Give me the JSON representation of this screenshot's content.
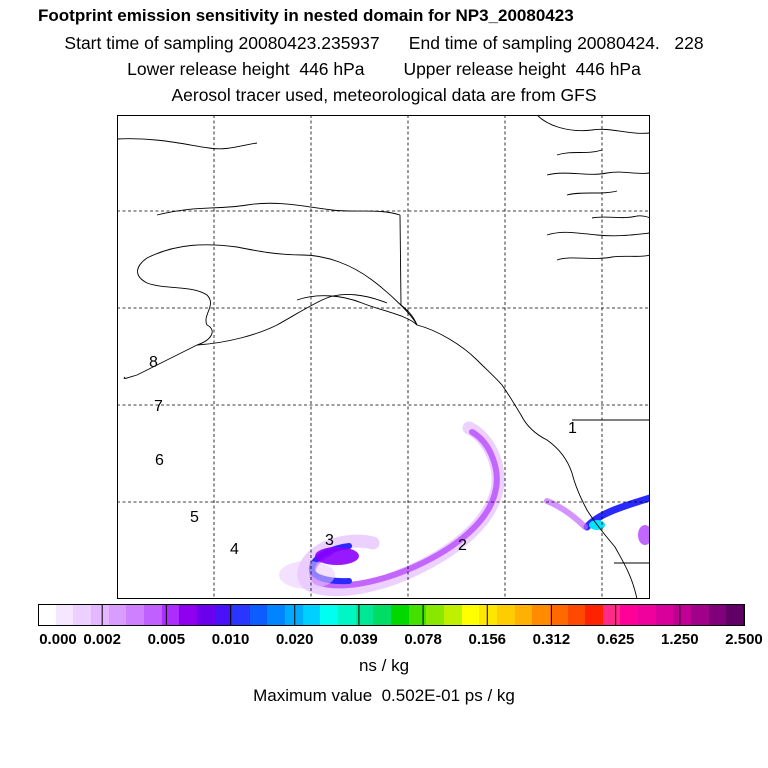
{
  "header": {
    "title": "Footprint emission sensitivity in nested domain for NP3_20080423",
    "line1": "Start time of sampling 20080423.235937      End time of sampling 20080424.   228",
    "line2": "Lower release height  446 hPa        Upper release height  446 hPa",
    "line3": "Aerosol tracer used, meteorological data are from GFS"
  },
  "map": {
    "trajectory_labels": [
      "8",
      "7",
      "6",
      "5",
      "4",
      "3",
      "2",
      "1"
    ],
    "colors": {
      "coastline": "#000000",
      "grid": "#000000",
      "plume_light": "#e9c8ff",
      "plume_mid": "#c266ff",
      "plume_dark": "#8b00ff",
      "plume_core": "#2a2aff",
      "plume_cyan": "#00e5ff"
    }
  },
  "colorbar": {
    "tick_labels": [
      "0.000",
      "0.002",
      "0.005",
      "0.010",
      "0.020",
      "0.039",
      "0.078",
      "0.156",
      "0.312",
      "0.625",
      "1.250",
      "2.500"
    ],
    "colors": [
      "#ffffff",
      "#f6e6ff",
      "#edd0ff",
      "#e4b8ff",
      "#d99cff",
      "#cf80ff",
      "#c060ff",
      "#ad2cff",
      "#9000f0",
      "#6a00ee",
      "#4a10f8",
      "#2a36ff",
      "#0c5cff",
      "#0084ff",
      "#00aaff",
      "#00d0ff",
      "#00fff0",
      "#00f6c4",
      "#00e896",
      "#00dc66",
      "#00d800",
      "#44e000",
      "#88e800",
      "#bef000",
      "#ffff00",
      "#ffe600",
      "#ffcc00",
      "#ffb000",
      "#ff8c00",
      "#ff6a00",
      "#ff4800",
      "#ff2200",
      "#ff2a8a",
      "#ff0099",
      "#f0009c",
      "#d8009a",
      "#c00094",
      "#a0008a",
      "#80007a",
      "#600066"
    ]
  },
  "units": "ns / kg",
  "max_value": "Maximum value  0.502E-01 ps / kg"
}
